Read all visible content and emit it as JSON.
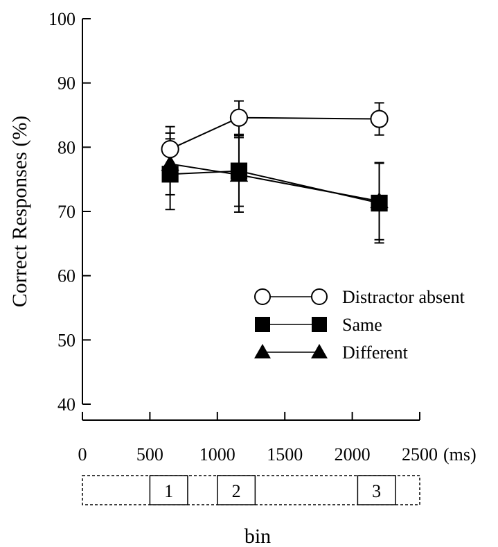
{
  "chart_data": {
    "type": "line",
    "xlabel": "(ms)",
    "ylabel": "Correct Responses (%)",
    "xlim": [
      0,
      2500
    ],
    "ylim": [
      40,
      100
    ],
    "x_ticks": [
      "0",
      "500",
      "1000",
      "1500",
      "2000",
      "2500"
    ],
    "y_ticks": [
      "40",
      "50",
      "60",
      "70",
      "80",
      "90",
      "100"
    ],
    "legend_position": "lower-right",
    "series": [
      {
        "name": "Distractor absent",
        "marker": "circle-open",
        "x": [
          650,
          1160,
          2200
        ],
        "y": [
          79.7,
          84.6,
          84.4
        ],
        "err": [
          3.5,
          2.6,
          2.5
        ]
      },
      {
        "name": "Same",
        "marker": "square-filled",
        "x": [
          650,
          1160,
          2200
        ],
        "y": [
          75.8,
          76.3,
          71.3
        ],
        "err": [
          5.5,
          5.5,
          6.2
        ]
      },
      {
        "name": "Different",
        "marker": "triangle-filled",
        "x": [
          650,
          1160,
          2200
        ],
        "y": [
          77.4,
          75.7,
          71.6
        ],
        "err": [
          4.8,
          5.8,
          6.0
        ]
      }
    ],
    "bins": {
      "range": [
        0,
        2500
      ],
      "title": "bin",
      "items": [
        {
          "label": "1",
          "start": 500,
          "end": 780
        },
        {
          "label": "2",
          "start": 1000,
          "end": 1280
        },
        {
          "label": "3",
          "start": 2040,
          "end": 2320
        }
      ]
    }
  }
}
